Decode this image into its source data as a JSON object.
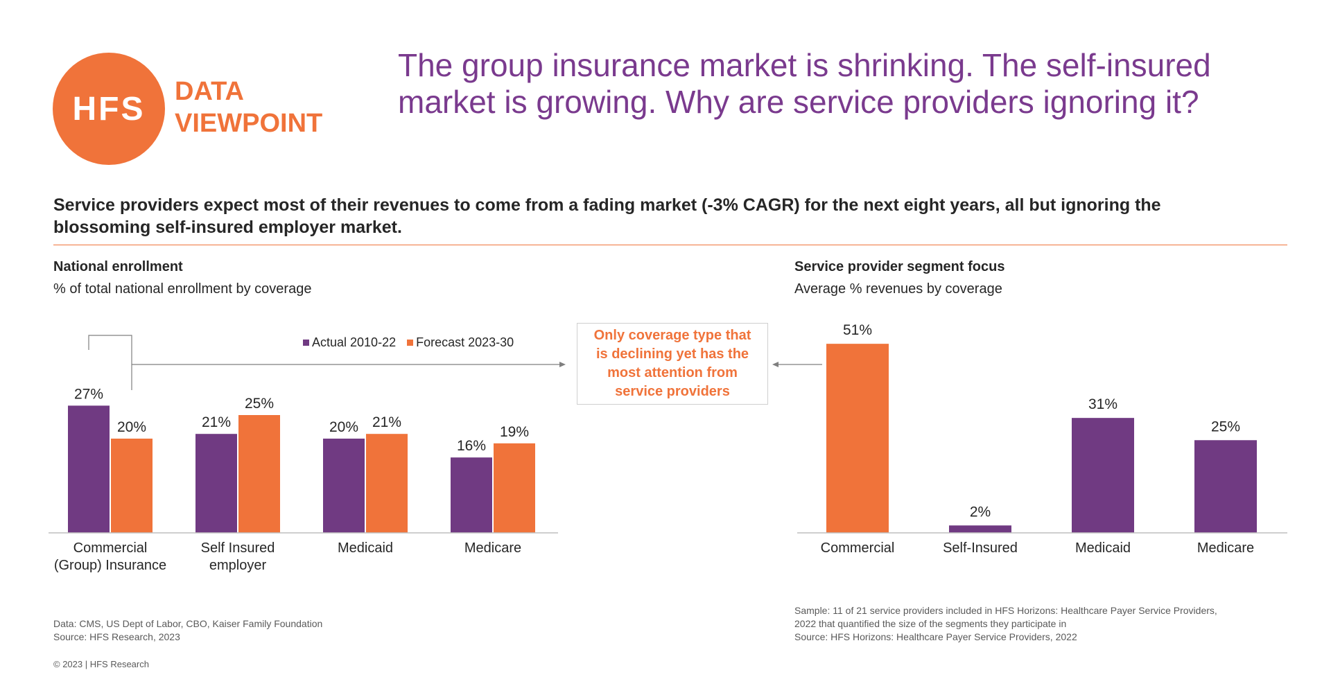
{
  "logo": {
    "text": "HFS",
    "line1": "DATA",
    "line2": "VIEWPOINT"
  },
  "headline": {
    "line1": "The group insurance market is shrinking. The self-insured",
    "line2": "market is growing. Why are service providers ignoring it?"
  },
  "subhead": {
    "line1": "Service providers expect most of their revenues to come from a fading market (-3% CAGR) for the next eight years, all but ignoring the",
    "line2": "blossoming self-insured employer market."
  },
  "left_panel": {
    "title": "National enrollment",
    "subtitle": "% of total national enrollment by coverage"
  },
  "right_panel": {
    "title": "Service provider segment focus",
    "subtitle": "Average % revenues by coverage"
  },
  "callout": {
    "line1": "Only coverage type that",
    "line2": "is declining yet has the",
    "line3": "most attention from",
    "line4": "service providers"
  },
  "colors": {
    "purple": "#703A82",
    "orange": "#F0733A",
    "headline": "#7A3A8E"
  },
  "chart_data": [
    {
      "type": "bar",
      "title": "National enrollment",
      "subtitle": "% of total national enrollment by coverage",
      "categories": [
        [
          "Commercial",
          "(Group) Insurance"
        ],
        [
          "Self Insured",
          "employer"
        ],
        [
          "Medicaid"
        ],
        [
          "Medicare"
        ]
      ],
      "series": [
        {
          "name": "Actual 2010-22",
          "values": [
            27,
            21,
            20,
            16
          ],
          "labels": [
            "27%",
            "21%",
            "20%",
            "16%"
          ]
        },
        {
          "name": "Forecast 2023-30",
          "values": [
            20,
            25,
            21,
            19
          ],
          "labels": [
            "20%",
            "25%",
            "21%",
            "19%"
          ]
        }
      ],
      "ylim": [
        0,
        30
      ],
      "legend": "top-right",
      "grid": false
    },
    {
      "type": "bar",
      "title": "Service provider segment focus",
      "subtitle": "Average % revenues by coverage",
      "categories": [
        "Commercial",
        "Self-Insured",
        "Medicaid",
        "Medicare"
      ],
      "values": [
        51,
        2,
        31,
        25
      ],
      "labels": [
        "51%",
        "2%",
        "31%",
        "25%"
      ],
      "bar_colors": [
        "orange",
        "purple",
        "purple",
        "purple"
      ],
      "ylim": [
        0,
        55
      ],
      "grid": false
    }
  ],
  "footnotes": {
    "left_data": "Data: CMS, US Dept of Labor, CBO, Kaiser Family Foundation",
    "left_source": "Source: HFS Research, 2023",
    "copyright": "© 2023 | HFS Research",
    "right_line1": "Sample: 11 of 21 service providers included in HFS Horizons: Healthcare Payer Service Providers,",
    "right_line2": "2022 that quantified the size of the segments they participate in",
    "right_source": "Source: HFS Horizons: Healthcare Payer Service Providers, 2022"
  }
}
